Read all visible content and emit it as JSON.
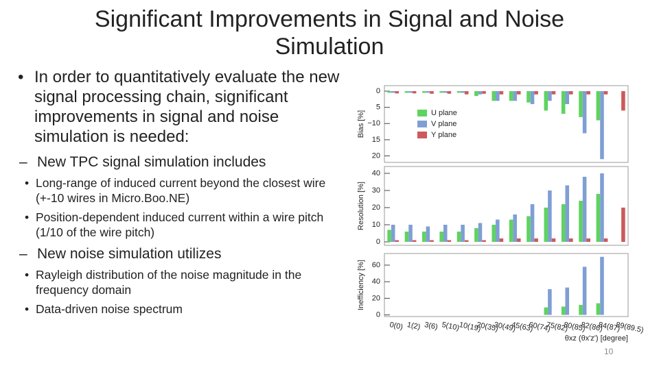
{
  "title": "Significant Improvements in Signal and Noise Simulation",
  "bullets": [
    {
      "text": "In order to quantitatively evaluate the new signal processing chain, significant improvements in signal and noise simulation is needed:",
      "sub": [
        {
          "text": "New TPC signal simulation includes",
          "sub": [
            "Long-range of induced current beyond the closest wire (+-10 wires in Micro.Boo.NE)",
            "Position-dependent induced current within a wire pitch (1/10 of the wire pitch)"
          ]
        },
        {
          "text": "New noise simulation utilizes",
          "sub": [
            "Rayleigh distribution of the noise magnitude in the frequency domain",
            "Data-driven noise spectrum"
          ]
        }
      ]
    }
  ],
  "page_number": "10",
  "chart_data": [
    {
      "type": "bar",
      "ylabel": "Bias [%]",
      "ylim": [
        -22,
        1.7
      ],
      "yticks": [
        {
          "value": 0,
          "label": "0"
        },
        {
          "value": -5,
          "label": "5"
        },
        {
          "value": -10,
          "label": "−10"
        },
        {
          "value": -15,
          "label": "15"
        },
        {
          "value": -20,
          "label": "20"
        }
      ],
      "series": [
        {
          "name": "U plane",
          "color": "#5fd35f",
          "values": [
            -0.5,
            -0.5,
            -0.5,
            -0.5,
            -0.5,
            -1.5,
            -3,
            -3,
            -3.5,
            -6,
            -7,
            -8,
            -9,
            0
          ]
        },
        {
          "name": "V plane",
          "color": "#7f9fd4",
          "values": [
            -0.5,
            -0.5,
            -0.5,
            -0.5,
            -0.5,
            -1,
            -3,
            -3,
            -4,
            -3,
            -4,
            -13,
            -21,
            0
          ]
        },
        {
          "name": "Y plane",
          "color": "#cc5a5a",
          "values": [
            -0.7,
            -0.7,
            -0.8,
            -0.8,
            -1,
            -0.8,
            -1,
            -1,
            -1,
            -1,
            -1,
            -1,
            -1,
            -6
          ]
        }
      ]
    },
    {
      "type": "bar",
      "ylabel": "Resolution [%]",
      "ylim": [
        -2,
        44
      ],
      "yticks": [
        0,
        10,
        20,
        30,
        40
      ],
      "series": [
        {
          "color": "#5fd35f",
          "values": [
            7,
            6,
            6,
            6,
            6,
            8,
            10,
            13,
            15,
            20,
            22,
            24,
            28,
            0
          ]
        },
        {
          "color": "#7f9fd4",
          "values": [
            10,
            10,
            9,
            10,
            10,
            11,
            13,
            16,
            22,
            30,
            33,
            38,
            40,
            0
          ]
        },
        {
          "color": "#cc5a5a",
          "values": [
            1,
            1,
            1,
            1,
            1,
            1,
            2,
            2,
            2,
            2,
            2,
            2,
            2,
            20
          ]
        }
      ]
    },
    {
      "type": "bar",
      "ylabel": "Inefficiency [%]",
      "ylim": [
        -2,
        74
      ],
      "yticks": [
        0,
        20,
        40,
        60
      ],
      "xlabel": "θxz (θx'z') [degree]",
      "categories": [
        "0(0)",
        "1(2)",
        "3(6)",
        "5(10)",
        "10(19)",
        "20(35)",
        "30(49)",
        "45(63)",
        "60(74)",
        "75(82)",
        "80(85)",
        "82(86)",
        "84(87)",
        "89(89.5)"
      ],
      "series": [
        {
          "color": "#5fd35f",
          "values": [
            0,
            0,
            0,
            0,
            0,
            0,
            0,
            0,
            0,
            9,
            10,
            12,
            14,
            0
          ]
        },
        {
          "color": "#7f9fd4",
          "values": [
            0,
            0,
            0,
            0,
            0,
            0,
            0,
            0,
            0,
            31,
            33,
            58,
            70,
            0
          ]
        },
        {
          "color": "#cc5a5a",
          "values": [
            0,
            0,
            0,
            0,
            0,
            0,
            0,
            0,
            0,
            0,
            0,
            0,
            0,
            0
          ]
        }
      ]
    }
  ]
}
